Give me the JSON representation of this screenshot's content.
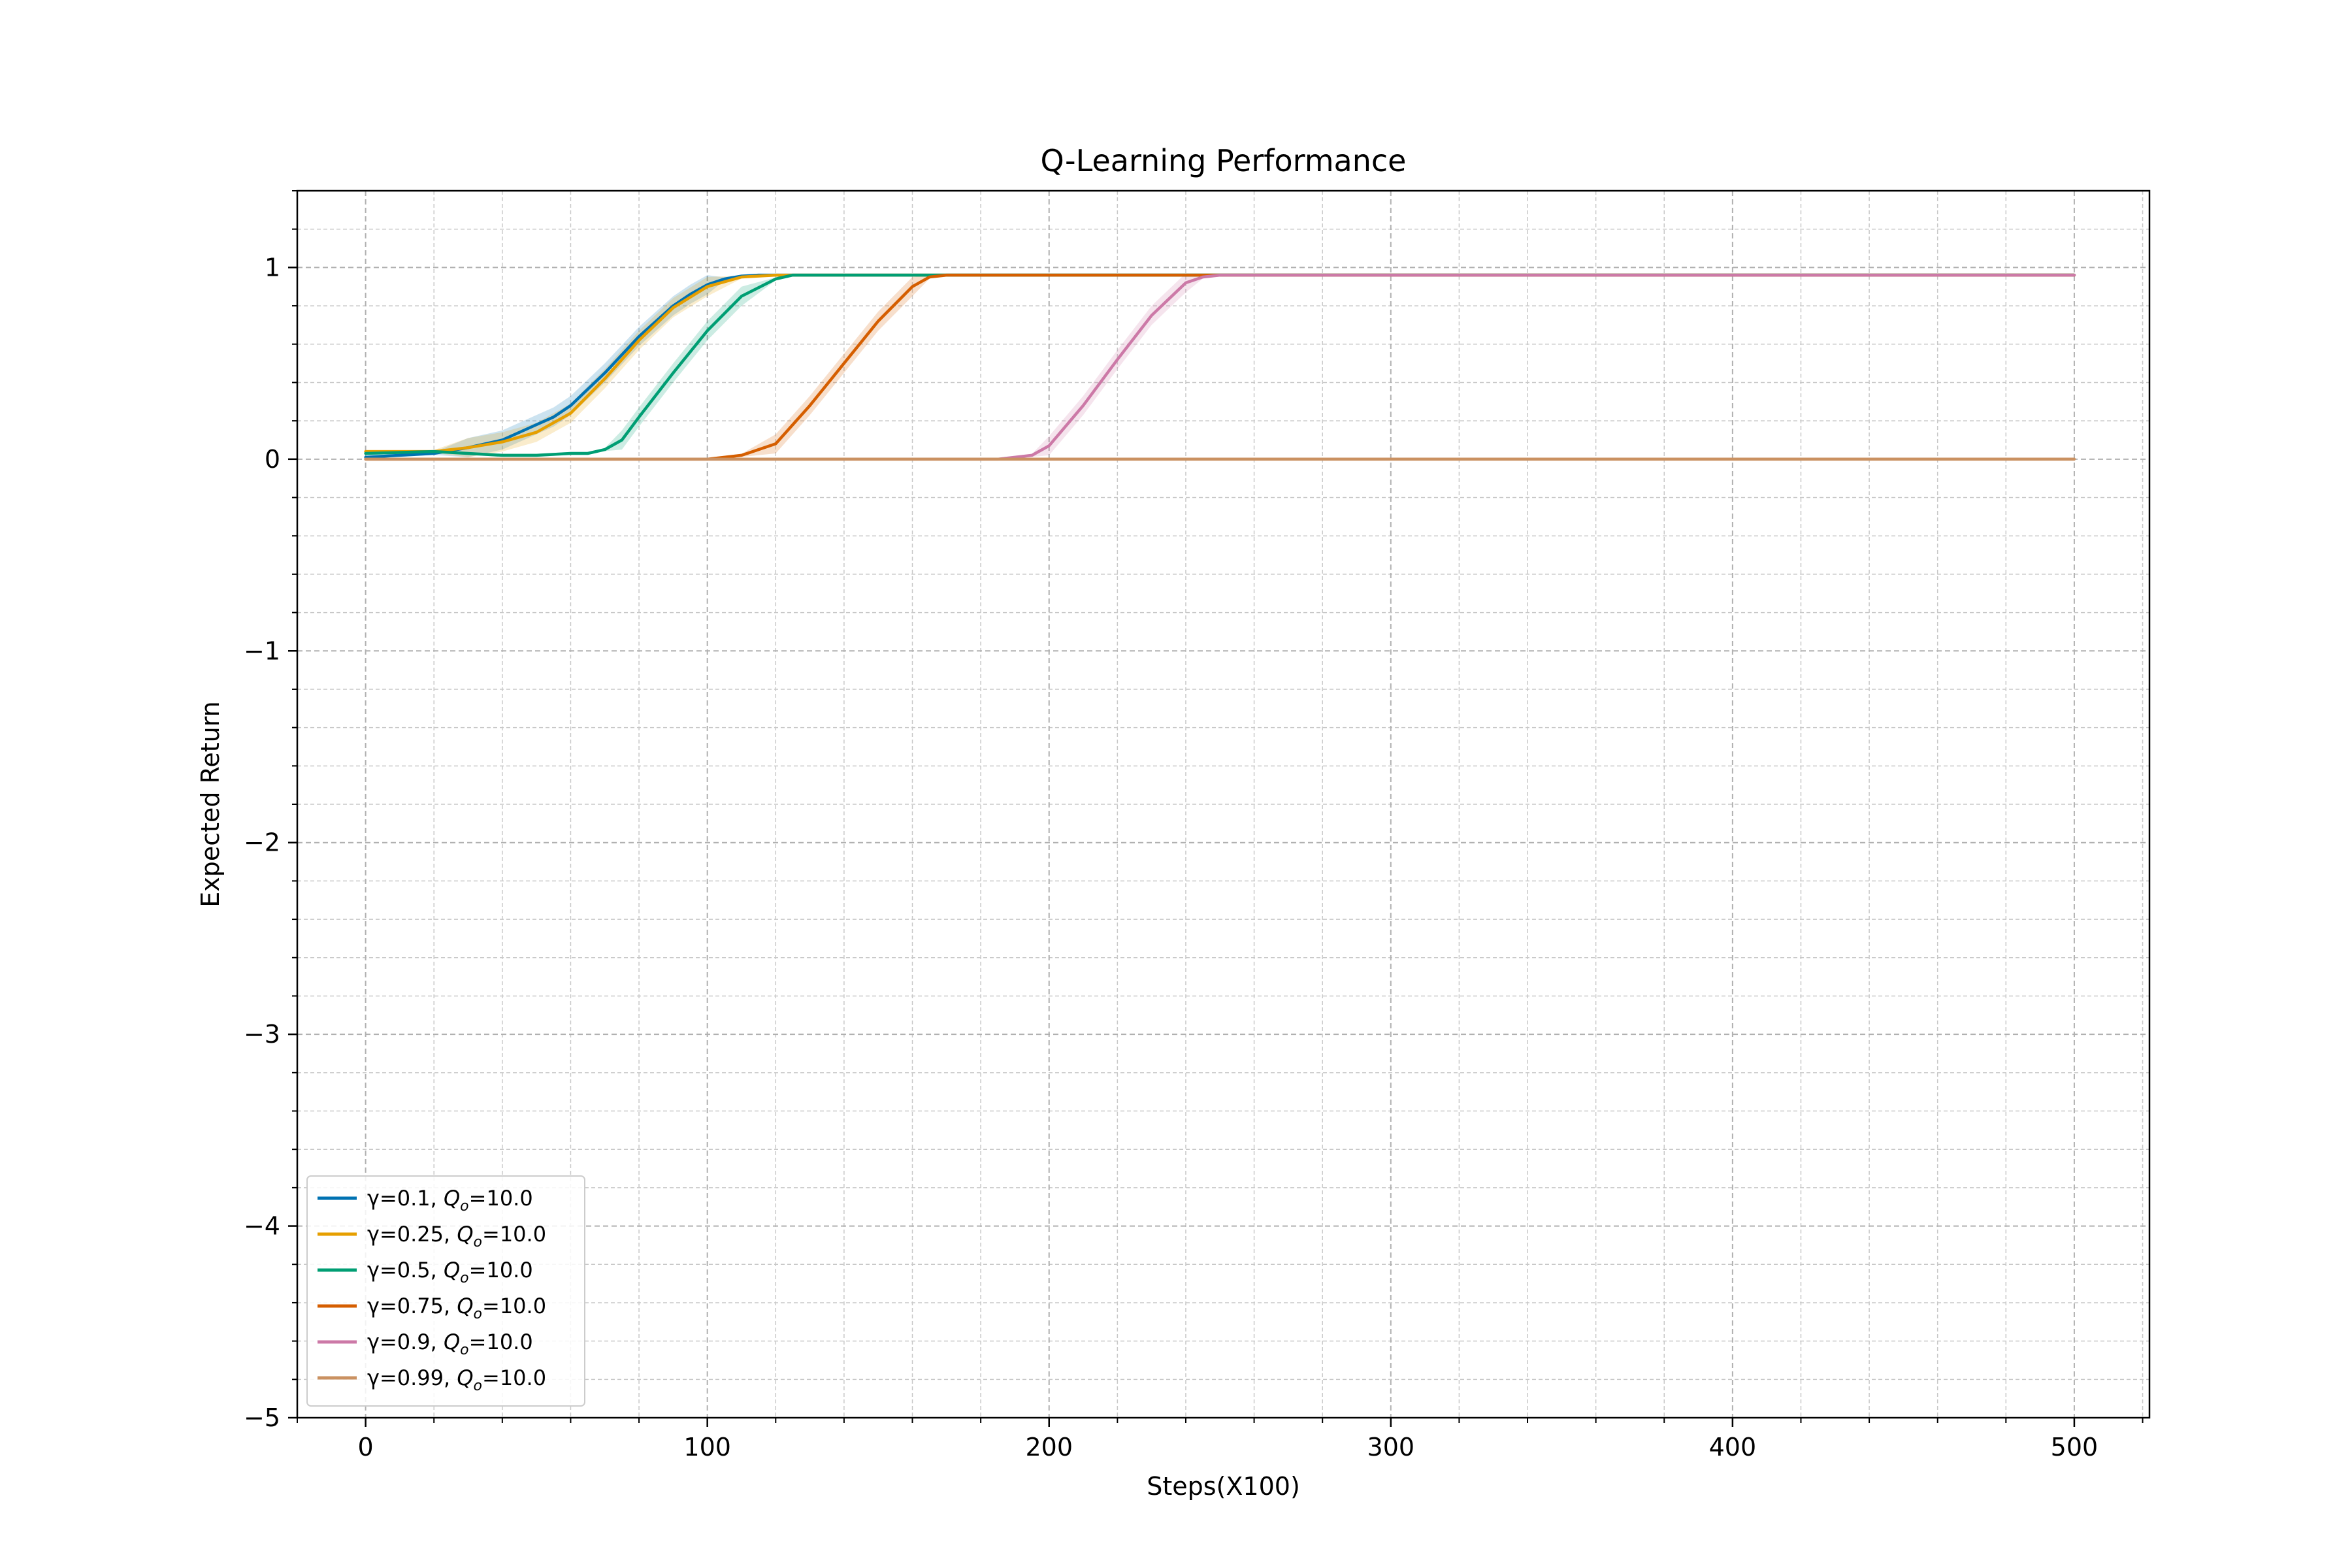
{
  "chart_data": {
    "type": "line",
    "title": "Q-Learning Performance",
    "xlabel": "Steps(X100)",
    "ylabel": "Expected Return",
    "xlim": [
      -20,
      522
    ],
    "ylim": [
      -5,
      1.4
    ],
    "xticks": [
      0,
      100,
      200,
      300,
      400,
      500
    ],
    "xtick_labels": [
      "0",
      "100",
      "200",
      "300",
      "400",
      "500"
    ],
    "yticks": [
      -5,
      -4,
      -3,
      -2,
      -1,
      0,
      1
    ],
    "ytick_labels": [
      "−5",
      "−4",
      "−3",
      "−2",
      "−1",
      "0",
      "1"
    ],
    "grid": true,
    "minor_grid": true,
    "legend_position": "lower-left",
    "series": [
      {
        "name": "γ=0.1, Q_o=10.0",
        "label_main": "γ=0.1, ",
        "label_sym": "Q",
        "label_sub": "o",
        "label_tail": "=10.0",
        "color": "#0072b2",
        "x": [
          0,
          10,
          20,
          30,
          40,
          50,
          55,
          60,
          70,
          80,
          90,
          95,
          100,
          105,
          110,
          115,
          120,
          500
        ],
        "y": [
          0.01,
          0.02,
          0.03,
          0.06,
          0.1,
          0.18,
          0.22,
          0.28,
          0.45,
          0.64,
          0.8,
          0.86,
          0.91,
          0.94,
          0.955,
          0.96,
          0.96,
          0.96
        ]
      },
      {
        "name": "γ=0.25, Q_o=10.0",
        "label_main": "γ=0.25, ",
        "label_sym": "Q",
        "label_sub": "o",
        "label_tail": "=10.0",
        "color": "#e69f00",
        "x": [
          0,
          10,
          20,
          30,
          40,
          50,
          60,
          70,
          80,
          90,
          100,
          110,
          120,
          500
        ],
        "y": [
          0.04,
          0.04,
          0.04,
          0.06,
          0.09,
          0.14,
          0.24,
          0.42,
          0.62,
          0.79,
          0.9,
          0.95,
          0.96,
          0.96
        ]
      },
      {
        "name": "γ=0.5, Q_o=10.0",
        "label_main": "γ=0.5, ",
        "label_sym": "Q",
        "label_sub": "o",
        "label_tail": "=10.0",
        "color": "#009e73",
        "x": [
          0,
          20,
          40,
          50,
          60,
          65,
          70,
          75,
          80,
          90,
          100,
          110,
          120,
          125,
          130,
          500
        ],
        "y": [
          0.03,
          0.04,
          0.02,
          0.02,
          0.03,
          0.03,
          0.05,
          0.1,
          0.22,
          0.45,
          0.67,
          0.85,
          0.94,
          0.96,
          0.96,
          0.96
        ]
      },
      {
        "name": "γ=0.75, Q_o=10.0",
        "label_main": "γ=0.75, ",
        "label_sym": "Q",
        "label_sub": "o",
        "label_tail": "=10.0",
        "color": "#d55e00",
        "x": [
          0,
          100,
          110,
          120,
          130,
          140,
          150,
          160,
          165,
          170,
          500
        ],
        "y": [
          0.0,
          0.0,
          0.02,
          0.08,
          0.28,
          0.5,
          0.72,
          0.9,
          0.95,
          0.96,
          0.96
        ]
      },
      {
        "name": "γ=0.9, Q_o=10.0",
        "label_main": "γ=0.9, ",
        "label_sym": "Q",
        "label_sub": "o",
        "label_tail": "=10.0",
        "color": "#cc79a7",
        "x": [
          0,
          185,
          195,
          200,
          210,
          220,
          230,
          240,
          245,
          250,
          500
        ],
        "y": [
          0.0,
          0.0,
          0.02,
          0.07,
          0.28,
          0.52,
          0.75,
          0.92,
          0.95,
          0.96,
          0.96
        ]
      },
      {
        "name": "γ=0.99, Q_o=10.0",
        "label_main": "γ=0.99, ",
        "label_sym": "Q",
        "label_sub": "o",
        "label_tail": "=10.0",
        "color": "#ca9161",
        "x": [
          0,
          500
        ],
        "y": [
          0.0,
          0.0
        ]
      }
    ]
  }
}
